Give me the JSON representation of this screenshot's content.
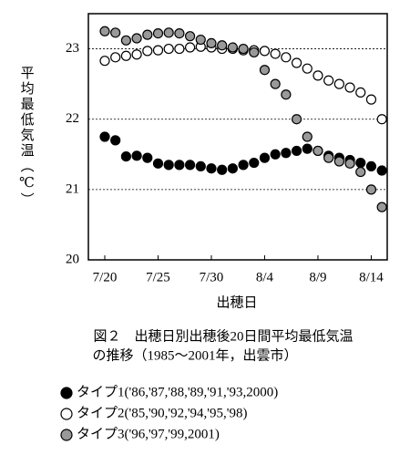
{
  "chart_data": {
    "type": "scatter",
    "y_label": "平均最低気温（℃）",
    "x_label": "出穂日",
    "caption": [
      "図２　出穂日別出穂後20日間平均最低気温",
      "の推移（1985～2001年，出雲市）"
    ],
    "categories": [
      "7/20",
      null,
      null,
      null,
      null,
      "7/25",
      null,
      null,
      null,
      null,
      "7/30",
      null,
      null,
      null,
      null,
      "8/4",
      null,
      null,
      null,
      null,
      "8/9",
      null,
      null,
      null,
      null,
      "8/14",
      null
    ],
    "ylim": [
      20,
      23.5
    ],
    "yticks": [
      20,
      21,
      22,
      23
    ],
    "grid": true,
    "series": [
      {
        "name": "タイプ1('86,'87,'88,'89,'91,'93,2000)",
        "color": "#000000",
        "values": [
          21.75,
          21.7,
          21.47,
          21.48,
          21.45,
          21.37,
          21.35,
          21.35,
          21.35,
          21.33,
          21.3,
          21.28,
          21.3,
          21.35,
          21.38,
          21.45,
          21.5,
          21.52,
          21.55,
          21.58,
          21.55,
          21.48,
          21.45,
          21.42,
          21.38,
          21.33,
          21.27
        ]
      },
      {
        "name": "タイプ2('85,'90,'92,'94,'95,'98)",
        "color": "#ffffff",
        "values": [
          22.83,
          22.88,
          22.9,
          22.92,
          22.97,
          22.98,
          23.0,
          23.0,
          23.02,
          23.03,
          23.02,
          23.0,
          23.0,
          22.98,
          22.98,
          22.97,
          22.93,
          22.88,
          22.8,
          22.72,
          22.62,
          22.55,
          22.5,
          22.45,
          22.38,
          22.28,
          22.0
        ]
      },
      {
        "name": "タイプ3('96,'97,'99,2001)",
        "color": "#999999",
        "values": [
          23.25,
          23.23,
          23.12,
          23.15,
          23.2,
          23.22,
          23.23,
          23.22,
          23.18,
          23.13,
          23.08,
          23.05,
          23.02,
          23.0,
          22.95,
          22.7,
          22.5,
          22.35,
          22.0,
          21.75,
          21.55,
          21.45,
          21.4,
          21.37,
          21.25,
          21.0,
          20.75
        ]
      }
    ]
  }
}
